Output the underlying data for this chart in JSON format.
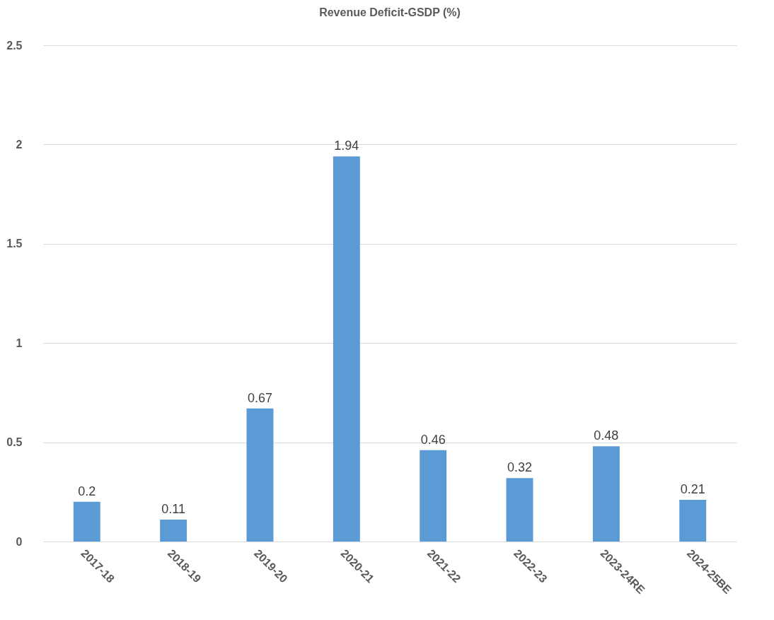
{
  "chart_data": {
    "type": "bar",
    "title": "Revenue Deficit-GSDP (%)",
    "categories": [
      "2017-18",
      "2018-19",
      "2019-20",
      "2020-21",
      "2021-22",
      "2022-23",
      "2023-24RE",
      "2024-25BE"
    ],
    "values": [
      0.2,
      0.11,
      0.67,
      1.94,
      0.46,
      0.32,
      0.48,
      0.21
    ],
    "color": "#5b9bd5",
    "ylim": [
      0,
      2.5
    ],
    "yticks": [
      0,
      0.5,
      1,
      1.5,
      2,
      2.5
    ],
    "grid": "y",
    "data_labels": true
  }
}
